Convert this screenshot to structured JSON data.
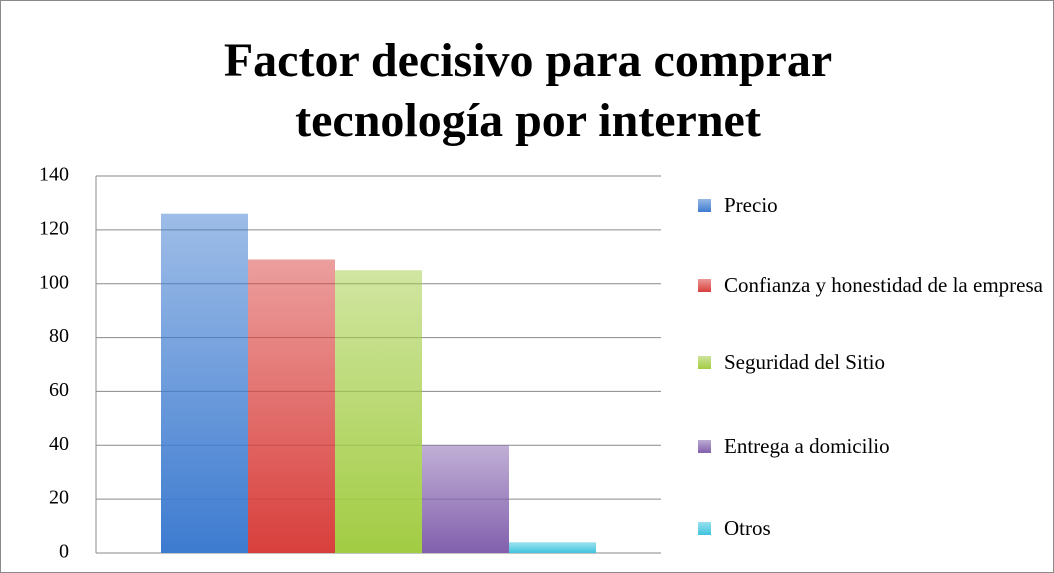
{
  "chart_data": {
    "type": "bar",
    "title": "Factor decisivo para comprar tecnología por internet",
    "series": [
      {
        "name": "Precio",
        "color": "#3d7bd0",
        "values": [
          126
        ]
      },
      {
        "name": "Confianza y honestidad de la empresa",
        "color": "#d83f3c",
        "values": [
          109
        ]
      },
      {
        "name": "Seguridad del Sitio",
        "color": "#a2cc43",
        "values": [
          105
        ]
      },
      {
        "name": "Entrega a domicilio",
        "color": "#8260ad",
        "values": [
          40
        ]
      },
      {
        "name": "Otros",
        "color": "#3fc4de",
        "values": [
          4
        ]
      }
    ],
    "ylim": [
      0,
      140
    ],
    "yticks": [
      0,
      20,
      40,
      60,
      80,
      100,
      120,
      140
    ],
    "grid": true,
    "legend": "right"
  }
}
